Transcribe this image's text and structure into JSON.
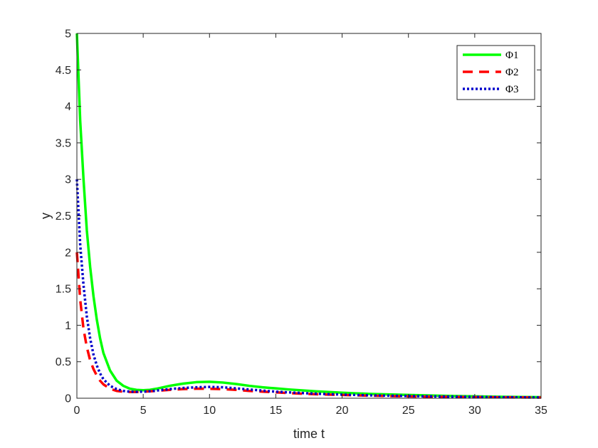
{
  "chart_data": {
    "type": "line",
    "title": "",
    "xlabel": "time t",
    "ylabel": "y",
    "xlim": [
      0,
      35
    ],
    "ylim": [
      0,
      5
    ],
    "xticks": [
      0,
      5,
      10,
      15,
      20,
      25,
      30,
      35
    ],
    "yticks": [
      0,
      0.5,
      1,
      1.5,
      2,
      2.5,
      3,
      3.5,
      4,
      4.5,
      5
    ],
    "xtick_labels": [
      "0",
      "5",
      "10",
      "15",
      "20",
      "25",
      "30",
      "35"
    ],
    "ytick_labels": [
      "0",
      "0.5",
      "1",
      "1.5",
      "2",
      "2.5",
      "3",
      "3.5",
      "4",
      "4.5",
      "5"
    ],
    "grid": false,
    "legend_position": "top-right",
    "series": [
      {
        "name": "Φ1",
        "color": "#00ff00",
        "style": "solid",
        "x": [
          0,
          0.25,
          0.5,
          0.75,
          1,
          1.25,
          1.5,
          1.75,
          2,
          2.5,
          3,
          3.5,
          4,
          4.5,
          5,
          5.5,
          6,
          7,
          8,
          9,
          10,
          11,
          12,
          13,
          14,
          15,
          16,
          18,
          20,
          22,
          25,
          28,
          30,
          32,
          35
        ],
        "y": [
          5.0,
          3.8,
          3.0,
          2.3,
          1.8,
          1.4,
          1.08,
          0.82,
          0.62,
          0.38,
          0.24,
          0.17,
          0.13,
          0.115,
          0.11,
          0.115,
          0.13,
          0.17,
          0.2,
          0.22,
          0.225,
          0.215,
          0.195,
          0.17,
          0.15,
          0.135,
          0.12,
          0.095,
          0.075,
          0.06,
          0.045,
          0.032,
          0.025,
          0.02,
          0.015
        ]
      },
      {
        "name": "Φ2",
        "color": "#ff0000",
        "style": "dashed",
        "x": [
          0,
          0.25,
          0.5,
          0.75,
          1,
          1.25,
          1.5,
          1.75,
          2,
          2.5,
          3,
          3.5,
          4,
          4.5,
          5,
          5.5,
          6,
          7,
          8,
          9,
          10,
          11,
          12,
          13,
          14,
          15,
          16,
          18,
          20,
          22,
          25,
          28,
          30,
          32,
          35
        ],
        "y": [
          2.0,
          1.35,
          0.95,
          0.7,
          0.52,
          0.4,
          0.31,
          0.24,
          0.19,
          0.13,
          0.1,
          0.09,
          0.085,
          0.085,
          0.09,
          0.095,
          0.1,
          0.115,
          0.125,
          0.13,
          0.13,
          0.125,
          0.115,
          0.1,
          0.09,
          0.08,
          0.07,
          0.055,
          0.045,
          0.035,
          0.025,
          0.018,
          0.015,
          0.012,
          0.01
        ]
      },
      {
        "name": "Φ3",
        "color": "#0000cc",
        "style": "dotted",
        "x": [
          0,
          0.25,
          0.5,
          0.75,
          1,
          1.25,
          1.5,
          1.75,
          2,
          2.5,
          3,
          3.5,
          4,
          4.5,
          5,
          5.5,
          6,
          7,
          8,
          9,
          10,
          11,
          12,
          13,
          14,
          15,
          16,
          18,
          20,
          22,
          25,
          28,
          30,
          32,
          35
        ],
        "y": [
          3.0,
          2.1,
          1.55,
          1.12,
          0.82,
          0.6,
          0.45,
          0.34,
          0.26,
          0.17,
          0.125,
          0.1,
          0.09,
          0.088,
          0.09,
          0.095,
          0.105,
          0.125,
          0.14,
          0.15,
          0.155,
          0.15,
          0.135,
          0.12,
          0.105,
          0.09,
          0.08,
          0.062,
          0.05,
          0.04,
          0.03,
          0.022,
          0.018,
          0.014,
          0.01
        ]
      }
    ]
  }
}
